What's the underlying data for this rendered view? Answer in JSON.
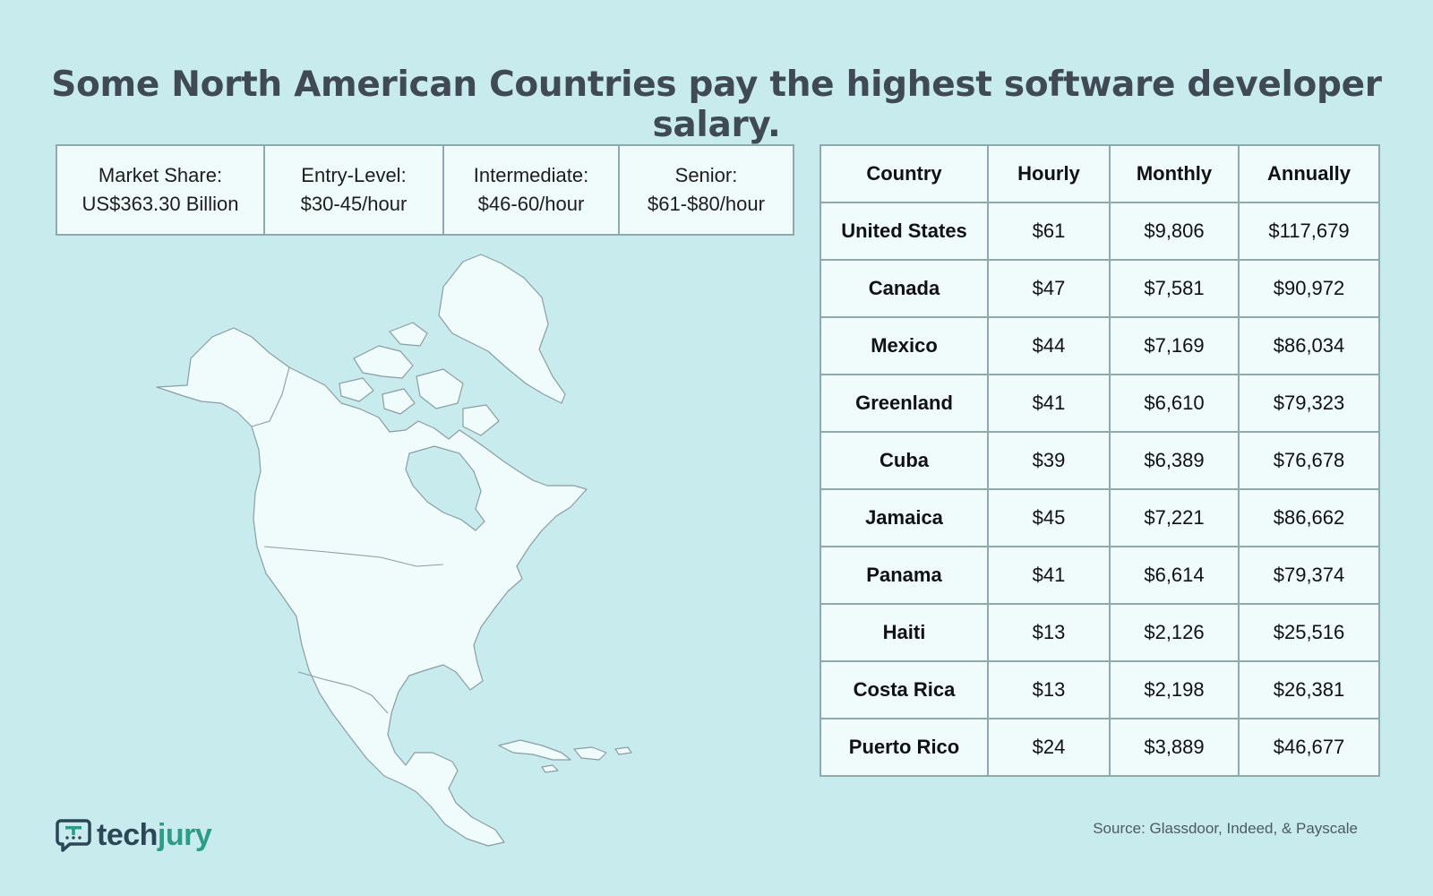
{
  "title": "Some North American Countries pay the highest software developer salary.",
  "stats": [
    {
      "label": "Market Share:",
      "value": "US$363.30 Billion"
    },
    {
      "label": "Entry-Level:",
      "value": "$30-45/hour"
    },
    {
      "label": "Intermediate:",
      "value": "$46-60/hour"
    },
    {
      "label": "Senior:",
      "value": "$61-$80/hour"
    }
  ],
  "table": {
    "headers": [
      "Country",
      "Hourly",
      "Monthly",
      "Annually"
    ],
    "rows": [
      {
        "country": "United States",
        "hourly": "$61",
        "monthly": "$9,806",
        "annually": "$117,679"
      },
      {
        "country": "Canada",
        "hourly": "$47",
        "monthly": "$7,581",
        "annually": "$90,972"
      },
      {
        "country": "Mexico",
        "hourly": "$44",
        "monthly": "$7,169",
        "annually": "$86,034"
      },
      {
        "country": "Greenland",
        "hourly": "$41",
        "monthly": "$6,610",
        "annually": "$79,323"
      },
      {
        "country": "Cuba",
        "hourly": "$39",
        "monthly": "$6,389",
        "annually": "$76,678"
      },
      {
        "country": "Jamaica",
        "hourly": "$45",
        "monthly": "$7,221",
        "annually": "$86,662"
      },
      {
        "country": "Panama",
        "hourly": "$41",
        "monthly": "$6,614",
        "annually": "$79,374"
      },
      {
        "country": "Haiti",
        "hourly": "$13",
        "monthly": "$2,126",
        "annually": "$25,516"
      },
      {
        "country": "Costa Rica",
        "hourly": "$13",
        "monthly": "$2,198",
        "annually": "$26,381"
      },
      {
        "country": "Puerto Rico",
        "hourly": "$24",
        "monthly": "$3,889",
        "annually": "$46,677"
      }
    ]
  },
  "logo": {
    "part1": "tech",
    "part2": "jury",
    "icon": "chat-bubble-icon"
  },
  "source": "Source: Glassdoor, Indeed, & Payscale",
  "colors": {
    "background": "#c8ebee",
    "land": "#f0fbfc",
    "title": "#3f4a55",
    "brand_dark": "#2b4756",
    "brand_accent": "#2b9c86"
  }
}
